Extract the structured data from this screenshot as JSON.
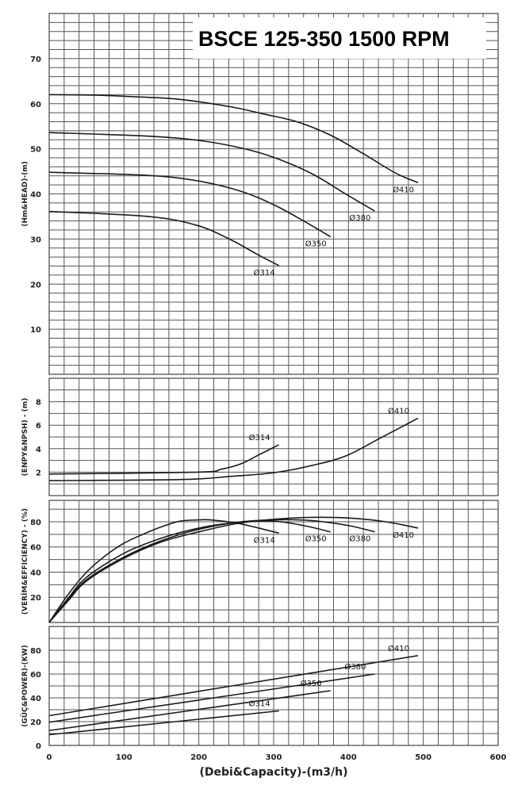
{
  "chart_data": {
    "type": "line",
    "title": "BSCE 125-350 1500 RPM",
    "xlabel": "(Debi&Capacity)-(m3/h)",
    "xlim": [
      0,
      600
    ],
    "xticks": [
      "0",
      "100",
      "200",
      "300",
      "400",
      "500",
      "600"
    ],
    "panels": [
      {
        "id": "head",
        "ylabel": "(Hm&HEAD)-(m)",
        "ylim": [
          0,
          80
        ],
        "yticks": [
          "10",
          "20",
          "30",
          "40",
          "50",
          "60",
          "70"
        ],
        "grid_step": 2,
        "series": [
          {
            "name": "Ø410",
            "x": [
              0,
              60,
              119,
              172,
              243,
              287,
              331,
              375,
              419,
              463,
              493
            ],
            "y": [
              62,
              61.9,
              61.5,
              61,
              59.3,
              57.7,
              56,
              53.1,
              49,
              44.6,
              42.5
            ]
          },
          {
            "name": "Ø380",
            "x": [
              0,
              132,
              198,
              256,
              300,
              352,
              396,
              435
            ],
            "y": [
              53.6,
              52.8,
              51.9,
              50.2,
              48.1,
              44.4,
              40,
              36.2
            ]
          },
          {
            "name": "Ø350",
            "x": [
              0,
              132,
              198,
              256,
              300,
              339,
              376
            ],
            "y": [
              44.8,
              44.1,
              42.9,
              40.6,
              37.6,
              34.1,
              30.5
            ]
          },
          {
            "name": "Ø314",
            "x": [
              0,
              132,
              198,
              243,
              278,
              307
            ],
            "y": [
              36.1,
              35,
              33,
              29.8,
              26.6,
              24.1
            ]
          }
        ]
      },
      {
        "id": "npsh",
        "ylabel": "(ENPY&NPSH) - (m)",
        "ylim": [
          0,
          10
        ],
        "yticks": [
          "2",
          "4",
          "6",
          "8"
        ],
        "grid_step": 1,
        "series": [
          {
            "name": "Ø314",
            "x": [
              0,
              198,
              230,
              256,
              281,
              307
            ],
            "y": [
              1.84,
              2.0,
              2.25,
              2.7,
              3.5,
              4.33
            ]
          },
          {
            "name": "Ø410",
            "x": [
              0,
              176,
              243,
              300,
              352,
              396,
              441,
              493
            ],
            "y": [
              1.28,
              1.37,
              1.64,
              1.95,
              2.58,
              3.37,
              4.85,
              6.6
            ]
          }
        ]
      },
      {
        "id": "efficiency",
        "ylabel": "(VERİM&EFFICIENCY) - (%)",
        "ylim": [
          0,
          97
        ],
        "yticks": [
          "20",
          "40",
          "60",
          "80"
        ],
        "grid_step": 10,
        "series": [
          {
            "name": "Ø314",
            "x": [
              0,
              25,
              50,
              75,
              100,
              125,
              150,
              175,
              200,
              215,
              250,
              280,
              307
            ],
            "y": [
              0,
              22,
              40,
              53,
              63,
              70,
              76,
              80.5,
              81.5,
              81.5,
              79,
              75,
              71
            ]
          },
          {
            "name": "Ø350",
            "x": [
              0,
              25,
              50,
              100,
              150,
              200,
              250,
              300,
              340,
              376
            ],
            "y": [
              0,
              19,
              36,
              55,
              67,
              75,
              79.5,
              80.5,
              77,
              72
            ]
          },
          {
            "name": "Ø380",
            "x": [
              0,
              25,
              50,
              100,
              150,
              200,
              250,
              300,
              350,
              400,
              435
            ],
            "y": [
              0,
              18,
              34,
              52,
              65,
              74,
              79.5,
              81.5,
              81,
              77,
              72
            ]
          },
          {
            "name": "Ø410",
            "x": [
              0,
              25,
              50,
              100,
              150,
              200,
              250,
              300,
              350,
              400,
              450,
              493
            ],
            "y": [
              0,
              17,
              33,
              51,
              64,
              72,
              78.5,
              82,
              83.5,
              83,
              80,
              75
            ]
          }
        ]
      },
      {
        "id": "power",
        "ylabel": "(GÜÇ&POWER)-(KW)",
        "ylim": [
          0,
          100
        ],
        "yticks": [
          "0",
          "20",
          "40",
          "60",
          "80"
        ],
        "grid_step": 10,
        "series": [
          {
            "name": "Ø410",
            "x": [
              0,
              493
            ],
            "y": [
              25,
              75.5
            ]
          },
          {
            "name": "Ø380",
            "x": [
              0,
              435
            ],
            "y": [
              19.5,
              60
            ]
          },
          {
            "name": "Ø350",
            "x": [
              0,
              376
            ],
            "y": [
              12.5,
              46
            ]
          },
          {
            "name": "Ø314",
            "x": [
              0,
              307
            ],
            "y": [
              9,
              29
            ]
          }
        ]
      }
    ]
  }
}
